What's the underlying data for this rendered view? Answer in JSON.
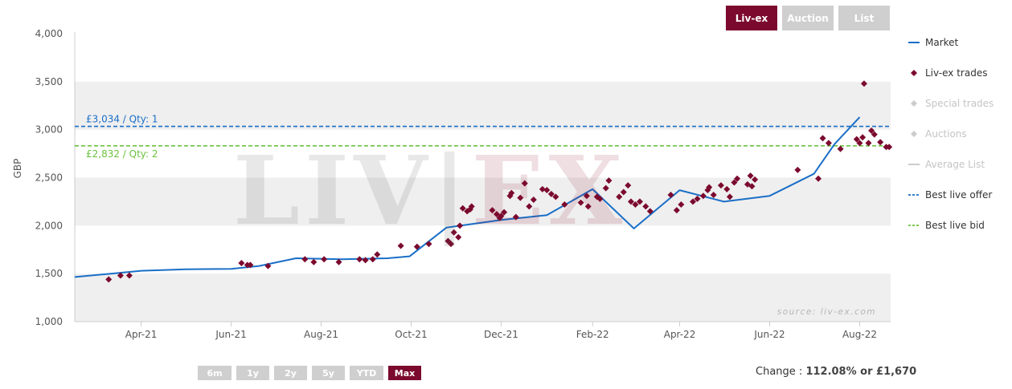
{
  "tabs": [
    {
      "label": "Liv-ex",
      "active": true
    },
    {
      "label": "Auction",
      "active": false
    },
    {
      "label": "List",
      "active": false
    }
  ],
  "range_buttons": [
    {
      "label": "6m",
      "active": false
    },
    {
      "label": "1y",
      "active": false
    },
    {
      "label": "2y",
      "active": false
    },
    {
      "label": "5y",
      "active": false
    },
    {
      "label": "YTD",
      "active": false
    },
    {
      "label": "Max",
      "active": true
    }
  ],
  "change": {
    "label": "Change :",
    "value": "112.08% or £1,670"
  },
  "watermark": {
    "left": "LIV",
    "divider": "|",
    "right": "EX"
  },
  "colors": {
    "market": "#1a6fc7",
    "trades": "#7b0a2e",
    "offer": "#1a6fc7",
    "bid": "#6cc13f",
    "active_button": "#7b0a2e",
    "inactive_button": "#cfcfcf",
    "band": "#efefef"
  },
  "chart_data": {
    "type": "line",
    "ylabel": "GBP",
    "ylim": [
      1000,
      4000
    ],
    "yticks": [
      1000,
      1500,
      2000,
      2500,
      3000,
      3500,
      4000
    ],
    "ytick_labels": [
      "1,000",
      "1,500",
      "2,000",
      "2,500",
      "3,000",
      "3,500",
      "4,000"
    ],
    "xlim": [
      "2021-02-15",
      "2022-08-22"
    ],
    "xticks": [
      "2021-04-01",
      "2021-06-01",
      "2021-08-01",
      "2021-10-01",
      "2021-12-01",
      "2022-02-01",
      "2022-04-01",
      "2022-06-01",
      "2022-08-01"
    ],
    "xtick_labels": [
      "Apr-21",
      "Jun-21",
      "Aug-21",
      "Oct-21",
      "Dec-21",
      "Feb-22",
      "Apr-22",
      "Jun-22",
      "Aug-22"
    ],
    "grid": "alternating horizontal bands",
    "legend_position": "right",
    "credit": "source: liv-ex.com",
    "series": [
      {
        "name": "Market",
        "kind": "line",
        "points": [
          [
            "2021-02-15",
            1465
          ],
          [
            "2021-03-15",
            1505
          ],
          [
            "2021-04-01",
            1530
          ],
          [
            "2021-05-01",
            1545
          ],
          [
            "2021-06-01",
            1550
          ],
          [
            "2021-06-20",
            1580
          ],
          [
            "2021-07-15",
            1660
          ],
          [
            "2021-08-15",
            1650
          ],
          [
            "2021-09-15",
            1660
          ],
          [
            "2021-09-30",
            1680
          ],
          [
            "2021-10-25",
            1980
          ],
          [
            "2021-12-01",
            2060
          ],
          [
            "2022-01-01",
            2110
          ],
          [
            "2022-02-01",
            2380
          ],
          [
            "2022-03-01",
            1970
          ],
          [
            "2022-04-01",
            2370
          ],
          [
            "2022-05-01",
            2250
          ],
          [
            "2022-06-01",
            2310
          ],
          [
            "2022-07-01",
            2540
          ],
          [
            "2022-07-15",
            2850
          ],
          [
            "2022-08-01",
            3130
          ]
        ]
      },
      {
        "name": "Liv-ex trades",
        "kind": "scatter",
        "points": [
          [
            "2021-03-10",
            1440
          ],
          [
            "2021-03-18",
            1480
          ],
          [
            "2021-03-24",
            1480
          ],
          [
            "2021-06-08",
            1610
          ],
          [
            "2021-06-12",
            1590
          ],
          [
            "2021-06-14",
            1590
          ],
          [
            "2021-06-26",
            1580
          ],
          [
            "2021-07-21",
            1650
          ],
          [
            "2021-07-27",
            1620
          ],
          [
            "2021-08-03",
            1650
          ],
          [
            "2021-08-13",
            1620
          ],
          [
            "2021-08-27",
            1650
          ],
          [
            "2021-08-31",
            1640
          ],
          [
            "2021-09-05",
            1650
          ],
          [
            "2021-09-08",
            1700
          ],
          [
            "2021-09-24",
            1790
          ],
          [
            "2021-10-05",
            1780
          ],
          [
            "2021-10-13",
            1810
          ],
          [
            "2021-10-26",
            1840
          ],
          [
            "2021-10-28",
            1810
          ],
          [
            "2021-10-30",
            1930
          ],
          [
            "2021-11-02",
            1880
          ],
          [
            "2021-11-03",
            2000
          ],
          [
            "2021-11-05",
            2180
          ],
          [
            "2021-11-08",
            2150
          ],
          [
            "2021-11-10",
            2170
          ],
          [
            "2021-11-11",
            2200
          ],
          [
            "2021-11-25",
            2160
          ],
          [
            "2021-11-28",
            2120
          ],
          [
            "2021-11-30",
            2080
          ],
          [
            "2021-12-01",
            2100
          ],
          [
            "2021-12-03",
            2140
          ],
          [
            "2021-12-07",
            2310
          ],
          [
            "2021-12-08",
            2340
          ],
          [
            "2021-12-11",
            2090
          ],
          [
            "2021-12-14",
            2290
          ],
          [
            "2021-12-17",
            2440
          ],
          [
            "2021-12-20",
            2200
          ],
          [
            "2021-12-23",
            2270
          ],
          [
            "2021-12-29",
            2380
          ],
          [
            "2022-01-01",
            2370
          ],
          [
            "2022-01-04",
            2330
          ],
          [
            "2022-01-07",
            2300
          ],
          [
            "2022-01-13",
            2220
          ],
          [
            "2022-01-24",
            2240
          ],
          [
            "2022-01-28",
            2310
          ],
          [
            "2022-01-29",
            2200
          ],
          [
            "2022-02-04",
            2300
          ],
          [
            "2022-02-06",
            2280
          ],
          [
            "2022-02-10",
            2390
          ],
          [
            "2022-02-12",
            2470
          ],
          [
            "2022-02-19",
            2300
          ],
          [
            "2022-02-22",
            2350
          ],
          [
            "2022-02-25",
            2420
          ],
          [
            "2022-02-27",
            2250
          ],
          [
            "2022-03-02",
            2220
          ],
          [
            "2022-03-05",
            2250
          ],
          [
            "2022-03-09",
            2200
          ],
          [
            "2022-03-12",
            2150
          ],
          [
            "2022-03-26",
            2320
          ],
          [
            "2022-03-30",
            2160
          ],
          [
            "2022-04-02",
            2220
          ],
          [
            "2022-04-10",
            2250
          ],
          [
            "2022-04-13",
            2280
          ],
          [
            "2022-04-17",
            2310
          ],
          [
            "2022-04-20",
            2370
          ],
          [
            "2022-04-21",
            2400
          ],
          [
            "2022-04-24",
            2320
          ],
          [
            "2022-04-29",
            2420
          ],
          [
            "2022-05-03",
            2380
          ],
          [
            "2022-05-05",
            2300
          ],
          [
            "2022-05-08",
            2450
          ],
          [
            "2022-05-10",
            2490
          ],
          [
            "2022-05-17",
            2430
          ],
          [
            "2022-05-19",
            2520
          ],
          [
            "2022-05-20",
            2410
          ],
          [
            "2022-05-22",
            2480
          ],
          [
            "2022-06-20",
            2580
          ],
          [
            "2022-07-04",
            2490
          ],
          [
            "2022-07-07",
            2910
          ],
          [
            "2022-07-11",
            2860
          ],
          [
            "2022-07-19",
            2800
          ],
          [
            "2022-07-30",
            2900
          ],
          [
            "2022-08-01",
            2860
          ],
          [
            "2022-08-03",
            2920
          ],
          [
            "2022-08-04",
            3480
          ],
          [
            "2022-08-07",
            2860
          ],
          [
            "2022-08-09",
            2990
          ],
          [
            "2022-08-11",
            2950
          ],
          [
            "2022-08-15",
            2870
          ],
          [
            "2022-08-19",
            2820
          ],
          [
            "2022-08-21",
            2820
          ]
        ]
      },
      {
        "name": "Special trades",
        "kind": "scatter",
        "points": []
      },
      {
        "name": "Auctions",
        "kind": "scatter",
        "points": []
      },
      {
        "name": "Average List",
        "kind": "line",
        "points": []
      },
      {
        "name": "Best live offer",
        "kind": "hline",
        "value": 3034,
        "label": "£3,034 / Qty: 1"
      },
      {
        "name": "Best live bid",
        "kind": "hline",
        "value": 2832,
        "label": "£2,832 / Qty: 2"
      }
    ]
  }
}
